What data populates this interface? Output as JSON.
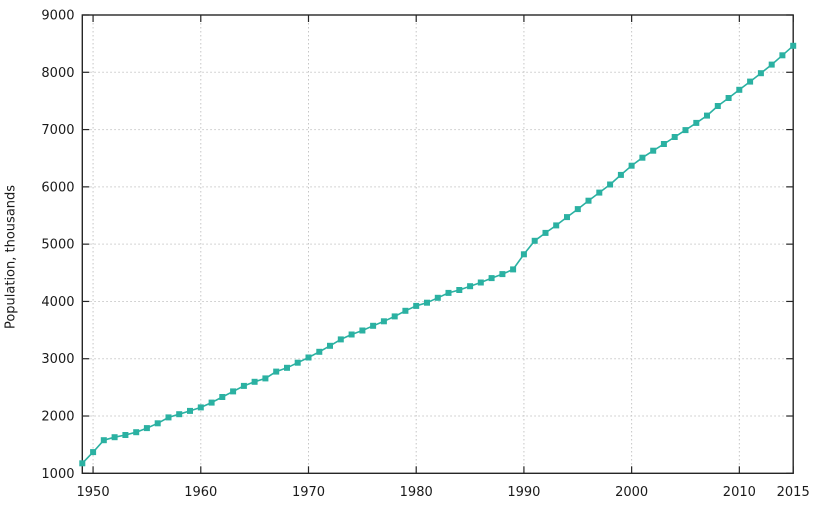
{
  "chart_data": {
    "type": "line",
    "title": "",
    "xlabel": "",
    "ylabel": "Population, thousands",
    "legend": "none",
    "grid": "dotted",
    "xlim": [
      1949,
      2015
    ],
    "ylim": [
      1000,
      9000
    ],
    "x_ticks": [
      1950,
      1960,
      1970,
      1980,
      1990,
      2000,
      2010,
      2015
    ],
    "y_ticks": [
      1000,
      2000,
      3000,
      4000,
      5000,
      6000,
      7000,
      8000,
      9000
    ],
    "x": [
      1949,
      1950,
      1951,
      1952,
      1953,
      1954,
      1955,
      1956,
      1957,
      1958,
      1959,
      1960,
      1961,
      1962,
      1963,
      1964,
      1965,
      1966,
      1967,
      1968,
      1969,
      1970,
      1971,
      1972,
      1973,
      1974,
      1975,
      1976,
      1977,
      1978,
      1979,
      1980,
      1981,
      1982,
      1983,
      1984,
      1985,
      1986,
      1987,
      1988,
      1989,
      1990,
      1991,
      1992,
      1993,
      1994,
      1995,
      1996,
      1997,
      1998,
      1999,
      2000,
      2001,
      2002,
      2003,
      2004,
      2005,
      2006,
      2007,
      2008,
      2009,
      2010,
      2011,
      2012,
      2013,
      2014,
      2015
    ],
    "series": [
      {
        "name": "Population, thousands",
        "values": [
          1174,
          1370,
          1578,
          1630,
          1669,
          1718,
          1789,
          1872,
          1976,
          2032,
          2089,
          2150,
          2234,
          2332,
          2430,
          2526,
          2598,
          2657,
          2776,
          2841,
          2930,
          3022,
          3121,
          3225,
          3338,
          3422,
          3493,
          3575,
          3653,
          3738,
          3836,
          3922,
          3978,
          4064,
          4149,
          4200,
          4266,
          4331,
          4407,
          4477,
          4560,
          4822,
          5059,
          5196,
          5328,
          5472,
          5612,
          5758,
          5900,
          6041,
          6209,
          6369,
          6509,
          6631,
          6748,
          6870,
          6991,
          7117,
          7244,
          7412,
          7552,
          7695,
          7837,
          7984,
          8134,
          8297,
          8463
        ]
      }
    ],
    "style": {
      "line_color": "#2bb1a2",
      "marker": "square",
      "marker_size": 6,
      "marker_color": "#2bb1a2",
      "background_color": "#ffffff",
      "border_color": "#262626",
      "grid_color": "#c6c6c6",
      "tick_label_color": "#1a1a1a"
    }
  }
}
